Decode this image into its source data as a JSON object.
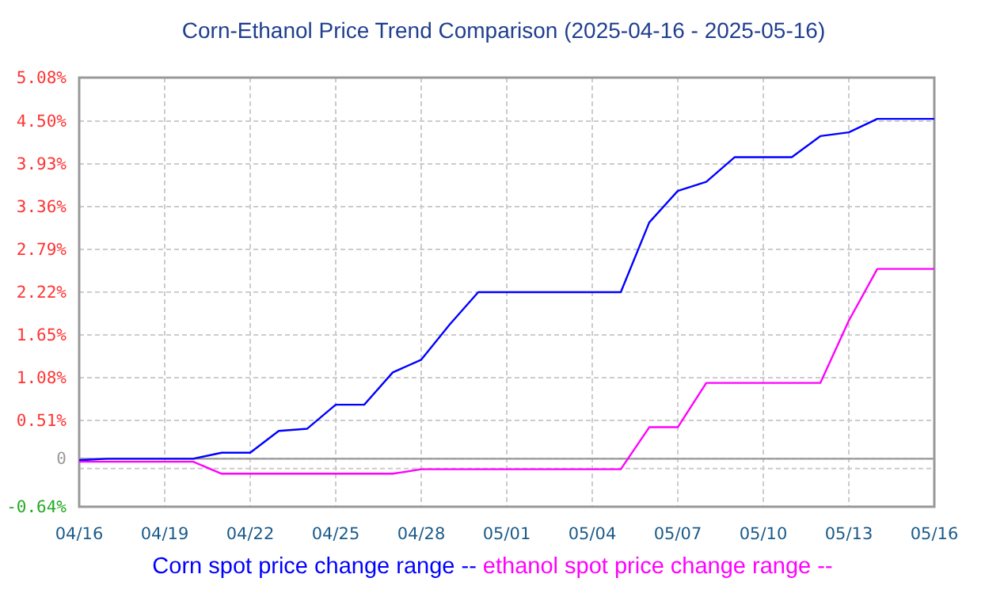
{
  "chart_data": {
    "type": "line",
    "title": "Corn-Ethanol Price Trend Comparison (2025-04-16 - 2025-05-16)",
    "categories": [
      "04/16",
      null,
      null,
      "04/19",
      null,
      null,
      "04/22",
      null,
      null,
      "04/25",
      null,
      null,
      "04/28",
      null,
      null,
      "05/01",
      null,
      null,
      "05/04",
      null,
      null,
      "05/07",
      null,
      null,
      "05/10",
      null,
      null,
      "05/13",
      null,
      null,
      "05/16"
    ],
    "series": [
      {
        "name": "Corn spot price change range --",
        "color": "#0000ff",
        "values": [
          -0.02,
          0,
          0,
          0,
          0,
          0.08,
          0.08,
          0.37,
          0.4,
          0.72,
          0.72,
          1.15,
          1.32,
          1.79,
          2.22,
          2.22,
          2.22,
          2.22,
          2.22,
          2.22,
          3.15,
          3.57,
          3.69,
          4.02,
          4.02,
          4.02,
          4.3,
          4.35,
          4.53,
          4.53,
          4.53
        ]
      },
      {
        "name": "ethanol spot price change range --",
        "color": "#ff00ff",
        "values": [
          -0.04,
          -0.04,
          -0.04,
          -0.04,
          -0.04,
          -0.2,
          -0.2,
          -0.2,
          -0.2,
          -0.2,
          -0.2,
          -0.2,
          -0.14,
          -0.14,
          -0.14,
          -0.14,
          -0.14,
          -0.14,
          -0.14,
          -0.14,
          0.42,
          0.42,
          1.01,
          1.01,
          1.01,
          1.01,
          1.01,
          1.84,
          2.53,
          2.53,
          2.53
        ]
      }
    ],
    "ylim": [
      -0.64,
      5.08
    ],
    "yticks": [
      {
        "value": 5.08,
        "label": "5.08%"
      },
      {
        "value": 4.5,
        "label": "4.50%"
      },
      {
        "value": 3.93,
        "label": "3.93%"
      },
      {
        "value": 3.36,
        "label": "3.36%"
      },
      {
        "value": 2.79,
        "label": "2.79%"
      },
      {
        "value": 2.22,
        "label": "2.22%"
      },
      {
        "value": 1.65,
        "label": "1.65%"
      },
      {
        "value": 1.08,
        "label": "1.08%"
      },
      {
        "value": 0.51,
        "label": "0.51%"
      },
      0,
      {
        "value": -0.13,
        "label": null
      },
      {
        "value": -0.64,
        "label": "-0.64%"
      }
    ],
    "ref_lines": [
      {
        "axis": "y",
        "value": 0,
        "color": "#999999"
      }
    ],
    "grid": true,
    "legend": "bottom",
    "marker": "none",
    "line_style": "solid"
  }
}
